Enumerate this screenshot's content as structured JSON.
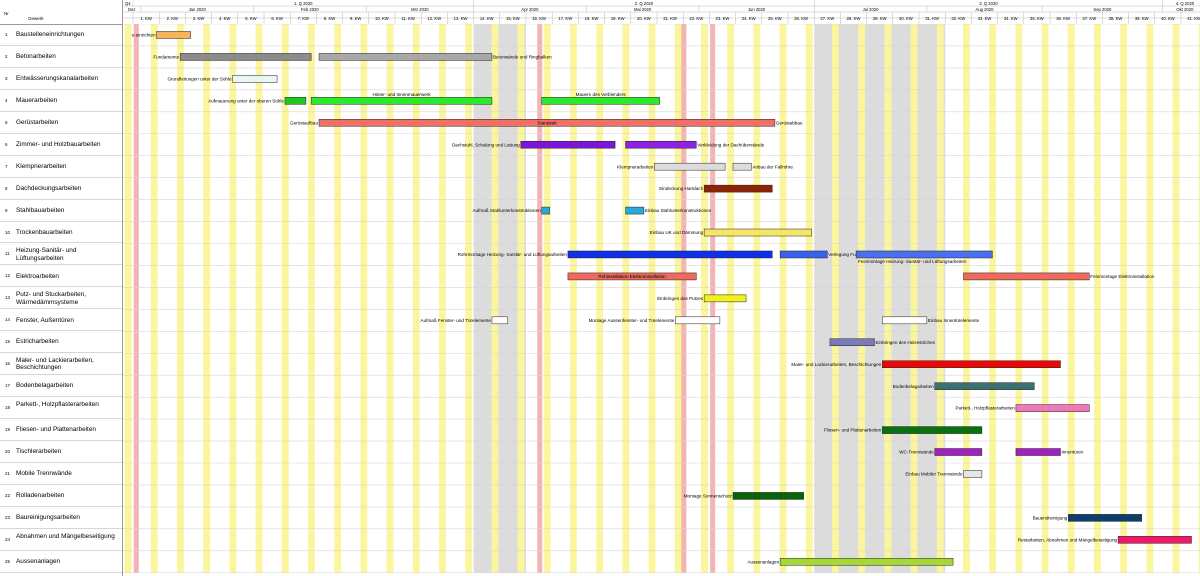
{
  "header": {
    "col_nr": "Nr",
    "col_gewerk": "Gewerk"
  },
  "quarters": [
    {
      "label": "Q4",
      "start": -0.4,
      "end": 0
    },
    {
      "label": "1. Q 2020",
      "start": 0,
      "end": 13
    },
    {
      "label": "2. Q 2020",
      "start": 13,
      "end": 26
    },
    {
      "label": "3. Q 2020",
      "start": 26,
      "end": 39.3
    },
    {
      "label": "4. Q 2020",
      "start": 39.3,
      "end": 41
    }
  ],
  "months": [
    {
      "label": "Dez",
      "start": -0.4,
      "end": 0.3
    },
    {
      "label": "Jan 2020",
      "start": 0.3,
      "end": 4.6
    },
    {
      "label": "Feb 2020",
      "start": 4.6,
      "end": 8.9
    },
    {
      "label": "Mrz 2020",
      "start": 8.9,
      "end": 13
    },
    {
      "label": "Apr 2020",
      "start": 13,
      "end": 17.3
    },
    {
      "label": "Mai 2020",
      "start": 17.3,
      "end": 21.6
    },
    {
      "label": "Jun 2020",
      "start": 21.6,
      "end": 26
    },
    {
      "label": "Jul 2020",
      "start": 26,
      "end": 30.3
    },
    {
      "label": "Aug 2020",
      "start": 30.3,
      "end": 34.7
    },
    {
      "label": "Sep 2020",
      "start": 34.7,
      "end": 39.3
    },
    {
      "label": "Okt 2020",
      "start": 39.3,
      "end": 41
    }
  ],
  "weeks": [
    "1. KW",
    "2. KW",
    "3. KW",
    "4. KW",
    "5. KW",
    "6. KW",
    "7. KW",
    "8. KW",
    "9. KW",
    "10. KW",
    "11. KW",
    "12. KW",
    "13. KW",
    "14. KW",
    "15. KW",
    "16. KW",
    "17. KW",
    "18. KW",
    "19. KW",
    "20. KW",
    "21. KW",
    "22. KW",
    "23. KW",
    "24. KW",
    "25. KW",
    "26. KW",
    "27. KW",
    "28. KW",
    "29. KW",
    "30. KW",
    "31. KW",
    "32. KW",
    "33. KW",
    "34. KW",
    "35. KW",
    "36. KW",
    "37. KW",
    "38. KW",
    "39. KW",
    "40. KW",
    "41. KW"
  ],
  "gray_weeks": [
    13,
    14,
    26,
    27,
    28,
    29,
    30
  ],
  "holidays": [
    -0.2,
    15.2,
    21.8,
    20.7
  ],
  "rows": [
    {
      "nr": "1",
      "name": "Baustelleneinrichtungen"
    },
    {
      "nr": "2",
      "name": "Betonarbeiten"
    },
    {
      "nr": "3",
      "name": "Entwässerungskanalarbeiten"
    },
    {
      "nr": "4",
      "name": "Mauerarbeiten"
    },
    {
      "nr": "5",
      "name": "Gerüstarbeiten"
    },
    {
      "nr": "6",
      "name": "Zimmer- und Holzbauarbeiten"
    },
    {
      "nr": "7",
      "name": "Klempnerarbeiten"
    },
    {
      "nr": "8",
      "name": "Dachdeckungsarbeiten"
    },
    {
      "nr": "9",
      "name": "Stahlbauarbeiten"
    },
    {
      "nr": "10",
      "name": "Trockenbauarbeiten"
    },
    {
      "nr": "11",
      "name": "Heizung-Sanitär- und Lüftungsarbeiten"
    },
    {
      "nr": "12",
      "name": "Elektroarbeiten"
    },
    {
      "nr": "13",
      "name": "Putz- und Stuckarbeiten, Wärmedämmsysteme"
    },
    {
      "nr": "14",
      "name": "Fenster, Außentüren"
    },
    {
      "nr": "15",
      "name": "Estricharbeiten"
    },
    {
      "nr": "16",
      "name": "Maler- und Lackierarbeiten, Beschichtungen"
    },
    {
      "nr": "17",
      "name": "Bodenbelagarbeiten"
    },
    {
      "nr": "18",
      "name": "Parkett-, Holzpflasterarbeiten"
    },
    {
      "nr": "19",
      "name": "Fliesen- und Plattenarbeiten"
    },
    {
      "nr": "20",
      "name": "Tischlerarbeiten"
    },
    {
      "nr": "21",
      "name": "Mobile Trennwände"
    },
    {
      "nr": "22",
      "name": "Rolladenarbeiten"
    },
    {
      "nr": "23",
      "name": "Baureinigungsarbeiten"
    },
    {
      "nr": "24",
      "name": "Abnahmen und Mängelbeseitigung"
    },
    {
      "nr": "25",
      "name": "Aussenanlagen"
    }
  ],
  "tasks": [
    {
      "row": 0,
      "start": 0.9,
      "end": 2.2,
      "color": "#f8b45c",
      "label_left": "e einrichten"
    },
    {
      "row": 1,
      "start": 1.8,
      "end": 6.8,
      "color": "#8c8c8c",
      "label_left": "Fundamente"
    },
    {
      "row": 1,
      "start": 7.1,
      "end": 13.7,
      "color": "#a8a8a8",
      "label_right": "Betonwände und Ringbalken"
    },
    {
      "row": 2,
      "start": 3.8,
      "end": 5.5,
      "color": "#eaf6f6",
      "label_left": "Grundleitungen unter der Sohle"
    },
    {
      "row": 3,
      "start": 5.8,
      "end": 6.6,
      "color": "#1ec81e",
      "label_left": "Aufmauerung unter der oberen Sohle"
    },
    {
      "row": 3,
      "start": 6.8,
      "end": 13.7,
      "color": "#2ee82e",
      "label_top": "Hinter- und Innenmauerwerk"
    },
    {
      "row": 3,
      "start": 15.6,
      "end": 20.1,
      "color": "#2ee82e",
      "label_top": "Mauern des Verblenders"
    },
    {
      "row": 4,
      "start": 7.1,
      "end": 24.5,
      "color": "#f07068",
      "label_left": "Gerüstaufbau",
      "label_inside": "Standzeit",
      "label_right": "Gerüstabbau"
    },
    {
      "row": 5,
      "start": 14.8,
      "end": 18.4,
      "color": "#7a16d6",
      "label_left": "Dachstuhl, Schalung und Lattung"
    },
    {
      "row": 5,
      "start": 18.8,
      "end": 21.5,
      "color": "#8d22e0",
      "label_right": "Verkleidung der Dachüberstände"
    },
    {
      "row": 6,
      "start": 19.9,
      "end": 22.6,
      "color": "#dcdcdc",
      "label_left": "Klempnerarbeiten"
    },
    {
      "row": 6,
      "start": 22.9,
      "end": 23.6,
      "color": "#dcdcdc",
      "label_right": "Anbau der Fallrohre"
    },
    {
      "row": 7,
      "start": 21.8,
      "end": 24.4,
      "color": "#8b2508",
      "label_left": "Eindeckung Hartdach"
    },
    {
      "row": 8,
      "start": 15.6,
      "end": 15.9,
      "color": "#2aa8d8",
      "label_left": "Aufmaß Stahlunterkonstruktionen"
    },
    {
      "row": 8,
      "start": 18.8,
      "end": 19.5,
      "color": "#2aa8d8",
      "label_right": "Einbau Stahlunterkonstruktionen"
    },
    {
      "row": 9,
      "start": 21.8,
      "end": 25.9,
      "color": "#f6e668",
      "label_left": "Einbau UK und Dämmung"
    },
    {
      "row": 10,
      "start": 16.6,
      "end": 24.4,
      "color": "#1030e8",
      "label_left": "Rohrmontage Heizung- Sanitär- und Lüftungsarbeiten"
    },
    {
      "row": 10,
      "start": 24.7,
      "end": 26.5,
      "color": "#3a60f0",
      "label_right": "Verlegung Fu"
    },
    {
      "row": 10,
      "start": 27.6,
      "end": 32.8,
      "color": "#4a70f0",
      "label_below": "Feinmontage Heizung- Sanitär- und Lüftungsarbeiten"
    },
    {
      "row": 11,
      "start": 16.6,
      "end": 21.5,
      "color": "#ec6a5e",
      "label_inside": "Rohinstallation Elektroinstallation"
    },
    {
      "row": 11,
      "start": 31.7,
      "end": 36.5,
      "color": "#ec6a5e",
      "label_right": "Feinmontage Elektroinstallation"
    },
    {
      "row": 12,
      "start": 21.8,
      "end": 23.4,
      "color": "#f0f01e",
      "label_left": "Einbringen des Putzes"
    },
    {
      "row": 13,
      "start": 13.7,
      "end": 14.3,
      "color": "#ffffff",
      "label_left": "Aufmaß Fenster- und Türelemente"
    },
    {
      "row": 13,
      "start": 20.7,
      "end": 22.4,
      "color": "#ffffff",
      "label_left": "Montage Aussenfenster- und Türelemente"
    },
    {
      "row": 13,
      "start": 28.6,
      "end": 30.3,
      "color": "#ffffff",
      "label_right": "Einbau Innentürelemente"
    },
    {
      "row": 14,
      "start": 26.6,
      "end": 28.3,
      "color": "#7a7ab8",
      "label_right": "Einbringen des Heizestriches"
    },
    {
      "row": 15,
      "start": 28.6,
      "end": 35.4,
      "color": "#e80808",
      "label_left": "Maler- und Lackierarbeiten, Beschichtungen"
    },
    {
      "row": 16,
      "start": 30.6,
      "end": 34.4,
      "color": "#3a7070",
      "label_left": "Bodenbelagarbeiten"
    },
    {
      "row": 17,
      "start": 33.7,
      "end": 36.5,
      "color": "#f078b8",
      "label_left": "Parkett-, Holzpflasterarbeiten"
    },
    {
      "row": 18,
      "start": 28.6,
      "end": 32.4,
      "color": "#0a7010",
      "label_left": "Fliesen- und Plattenarbeiten"
    },
    {
      "row": 19,
      "start": 30.6,
      "end": 32.4,
      "color": "#a020c0",
      "label_left": "WC-Trennwände"
    },
    {
      "row": 19,
      "start": 33.7,
      "end": 35.4,
      "color": "#a020c0",
      "label_right": "Innentüren"
    },
    {
      "row": 20,
      "start": 31.7,
      "end": 32.4,
      "color": "#e4e4ee",
      "label_left": "Einbau Mobiler Trennwände"
    },
    {
      "row": 21,
      "start": 22.9,
      "end": 25.6,
      "color": "#0a620a",
      "label_left": "Montage Sonnenschutz"
    },
    {
      "row": 22,
      "start": 35.7,
      "end": 38.5,
      "color": "#0e3e6e",
      "label_left": "Bauendreinigung"
    },
    {
      "row": 23,
      "start": 37.6,
      "end": 40.4,
      "color": "#f0186a",
      "label_left": "Restarbeiten, Abnahmen und Mängelbeseitigung"
    },
    {
      "row": 24,
      "start": 24.7,
      "end": 31.3,
      "color": "#a6d838",
      "label_left": "Aussenanlagen"
    }
  ]
}
